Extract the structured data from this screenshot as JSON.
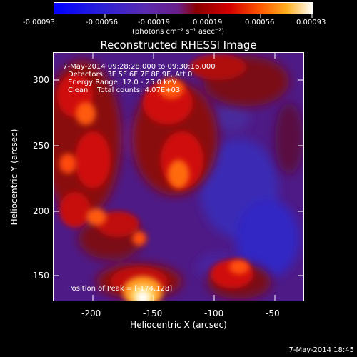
{
  "colorbar": {
    "tick_labels": [
      "-0.00093",
      "-0.00056",
      "-0.00019",
      "0.00019",
      "0.00056",
      "0.00093"
    ],
    "units_label": "(photons cm⁻² s⁻¹ asec⁻²)"
  },
  "plot": {
    "title": "Reconstructed RHESSI Image",
    "xlabel": "Heliocentric X (arcsec)",
    "ylabel": "Heliocentric Y (arcsec)",
    "x_ticks": [
      "-200",
      "-150",
      "-100",
      "-50"
    ],
    "y_ticks": [
      "300",
      "250",
      "200",
      "150"
    ],
    "info_lines": [
      " 7-May-2014 09:28:28.000 to 09:30:16.000",
      "Detectors: 3F 5F 6F 7F 8F 9F, Att 0",
      "Energy Range: 12.0 - 25.0 keV",
      "Clean    Total counts: 4.07E+03"
    ],
    "peak_label": "Position of Peak = [-174,128]"
  },
  "footer_timestamp": "7-May-2014 18:45"
}
